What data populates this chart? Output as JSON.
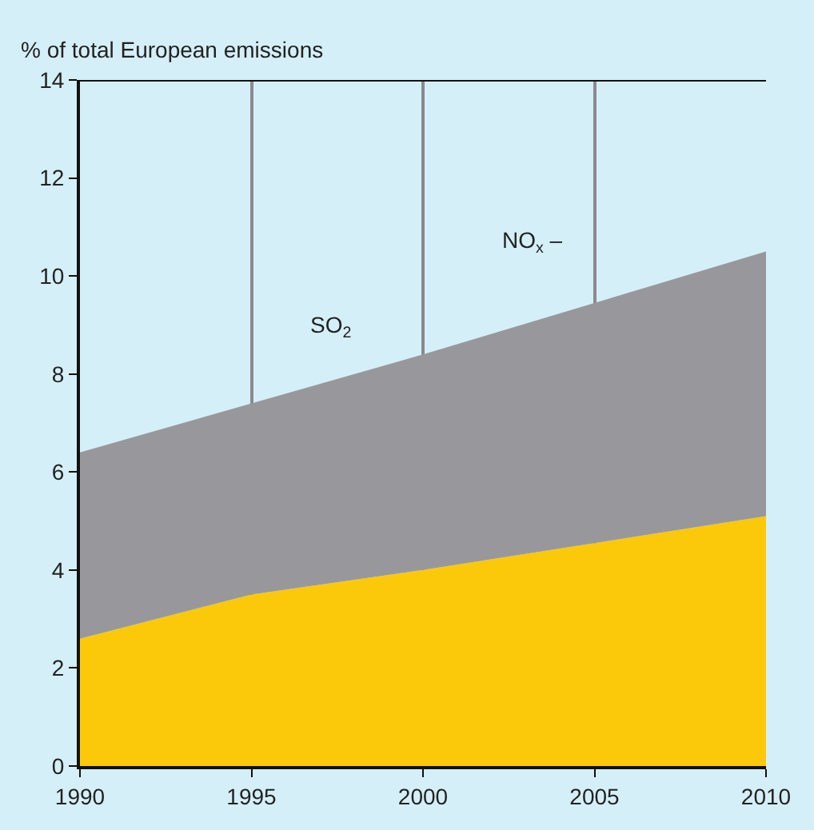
{
  "chart_data": {
    "type": "area",
    "stacked": true,
    "ylabel": "% of total European emissions",
    "x": [
      1990,
      1995,
      2000,
      2010
    ],
    "series": [
      {
        "color": "#fcc90a",
        "values": [
          2.6,
          3.5,
          4.0,
          5.1
        ]
      },
      {
        "color": "#98989c",
        "values": [
          3.8,
          3.9,
          4.4,
          5.4
        ]
      }
    ],
    "annotations": [
      "SO$_{2}$",
      "NO$_{x}$ –"
    ],
    "xlim": [
      1990,
      2010
    ],
    "xticks": [
      1990,
      1995,
      2000,
      2005,
      2010
    ],
    "ylim": [
      0,
      14
    ],
    "yticks": [
      0,
      2,
      4,
      6,
      8,
      10,
      12,
      14
    ],
    "grid": "x"
  }
}
